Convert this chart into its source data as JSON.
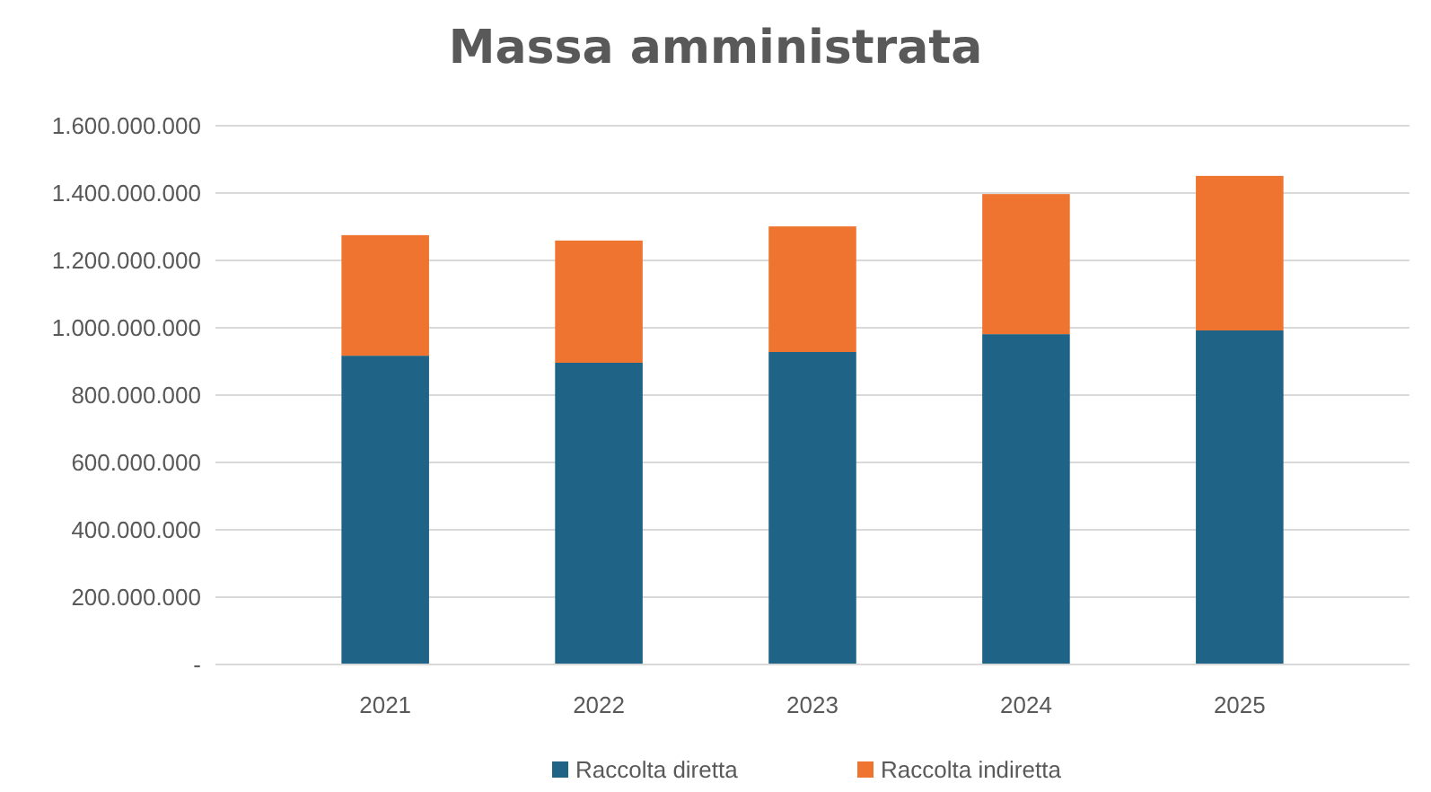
{
  "chart_data": {
    "type": "bar",
    "title": "Massa amministrata",
    "stacked": true,
    "categories": [
      "2021",
      "2022",
      "2023",
      "2024",
      "2025"
    ],
    "series": [
      {
        "name": "Raccolta diretta",
        "color": "#1f6386",
        "values": [
          917000000,
          896000000,
          928000000,
          981000000,
          992000000
        ]
      },
      {
        "name": "Raccolta indiretta",
        "color": "#ee7430",
        "values": [
          358000000,
          363000000,
          373000000,
          416000000,
          459000000
        ]
      }
    ],
    "ylim": [
      0,
      1600000000
    ],
    "yticks": [
      {
        "value": 0,
        "label": "-"
      },
      {
        "value": 200000000,
        "label": "200.000.000"
      },
      {
        "value": 400000000,
        "label": "400.000.000"
      },
      {
        "value": 600000000,
        "label": "600.000.000"
      },
      {
        "value": 800000000,
        "label": "800.000.000"
      },
      {
        "value": 1000000000,
        "label": "1.000.000.000"
      },
      {
        "value": 1200000000,
        "label": "1.200.000.000"
      },
      {
        "value": 1400000000,
        "label": "1.400.000.000"
      },
      {
        "value": 1600000000,
        "label": "1.600.000.000"
      }
    ],
    "grid": "y",
    "legend": "bottom"
  }
}
